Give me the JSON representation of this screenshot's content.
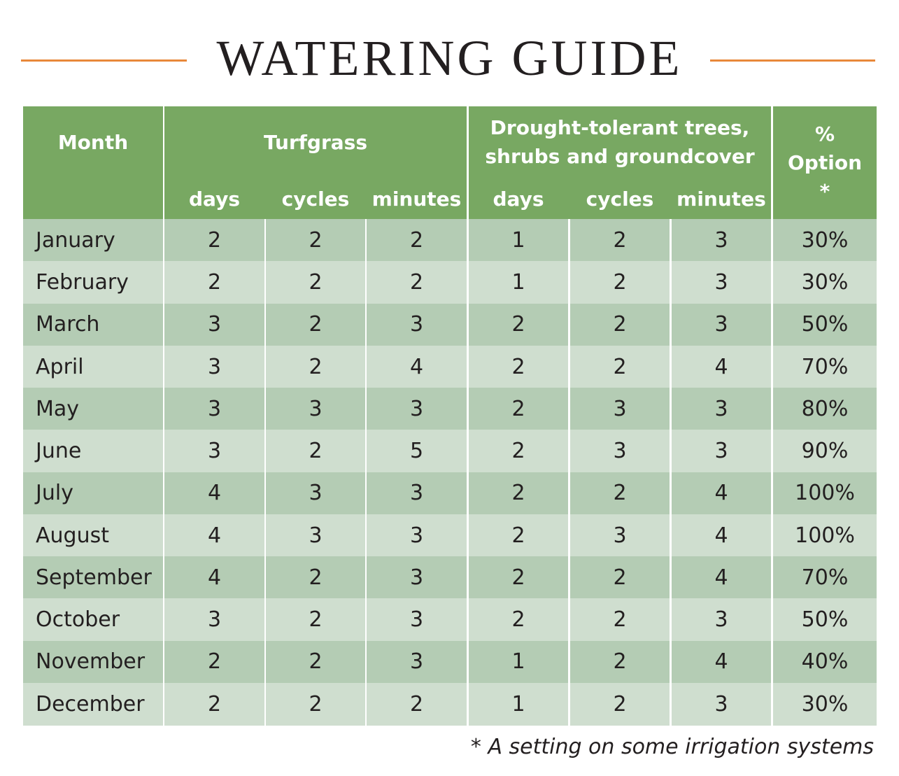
{
  "title": "WATERING GUIDE",
  "table": {
    "month_header": "Month",
    "groups": [
      {
        "lines": [
          "Turfgrass"
        ]
      },
      {
        "lines": [
          "Drought-tolerant trees,",
          "shrubs and groundcover"
        ]
      }
    ],
    "subheaders": [
      "days",
      "cycles",
      "minutes",
      "days",
      "cycles",
      "minutes"
    ],
    "percent_header": [
      "%",
      "Option",
      "*"
    ],
    "rows": [
      [
        "January",
        2,
        2,
        2,
        1,
        2,
        3,
        "30%"
      ],
      [
        "February",
        2,
        2,
        2,
        1,
        2,
        3,
        "30%"
      ],
      [
        "March",
        3,
        2,
        3,
        2,
        2,
        3,
        "50%"
      ],
      [
        "April",
        3,
        2,
        4,
        2,
        2,
        4,
        "70%"
      ],
      [
        "May",
        3,
        3,
        3,
        2,
        3,
        3,
        "80%"
      ],
      [
        "June",
        3,
        2,
        5,
        2,
        3,
        3,
        "90%"
      ],
      [
        "July",
        4,
        3,
        3,
        2,
        2,
        4,
        "100%"
      ],
      [
        "August",
        4,
        3,
        3,
        2,
        3,
        4,
        "100%"
      ],
      [
        "September",
        4,
        2,
        3,
        2,
        2,
        4,
        "70%"
      ],
      [
        "October",
        3,
        2,
        3,
        2,
        2,
        3,
        "50%"
      ],
      [
        "November",
        2,
        2,
        3,
        1,
        2,
        4,
        "40%"
      ],
      [
        "December",
        2,
        2,
        2,
        1,
        2,
        3,
        "30%"
      ]
    ]
  },
  "footnote": "* A setting on some irrigation systems"
}
